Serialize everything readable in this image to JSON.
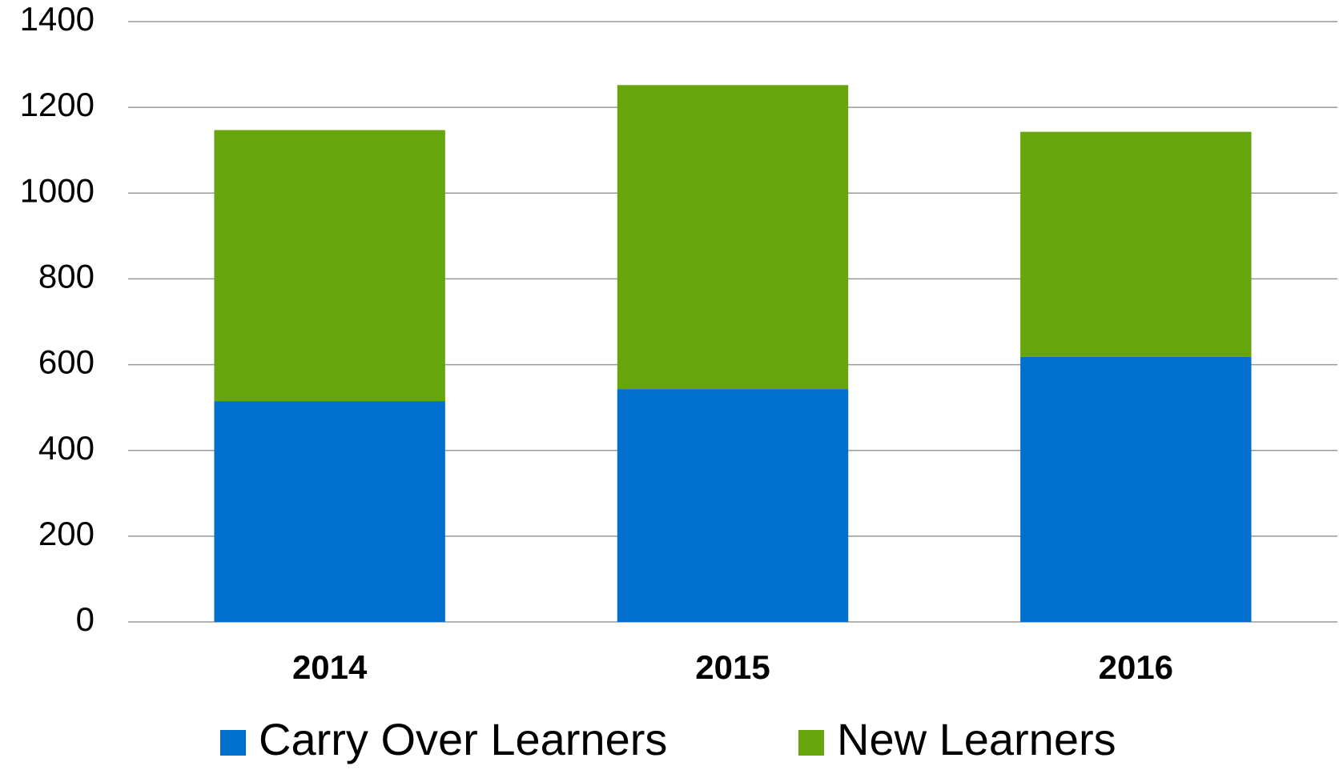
{
  "chart_data": {
    "type": "stacked_bar",
    "categories": [
      "2014",
      "2015",
      "2016"
    ],
    "series": [
      {
        "name": "Carry Over Learners",
        "color": "#0070cc",
        "values": [
          515,
          543,
          618
        ]
      },
      {
        "name": "New Learners",
        "color": "#66a60c",
        "values": [
          632,
          709,
          525
        ]
      }
    ],
    "ylim": [
      0,
      1400
    ],
    "yticks": [
      0,
      200,
      400,
      600,
      800,
      1000,
      1200,
      1400
    ],
    "grid": true,
    "legend": "bottom"
  }
}
